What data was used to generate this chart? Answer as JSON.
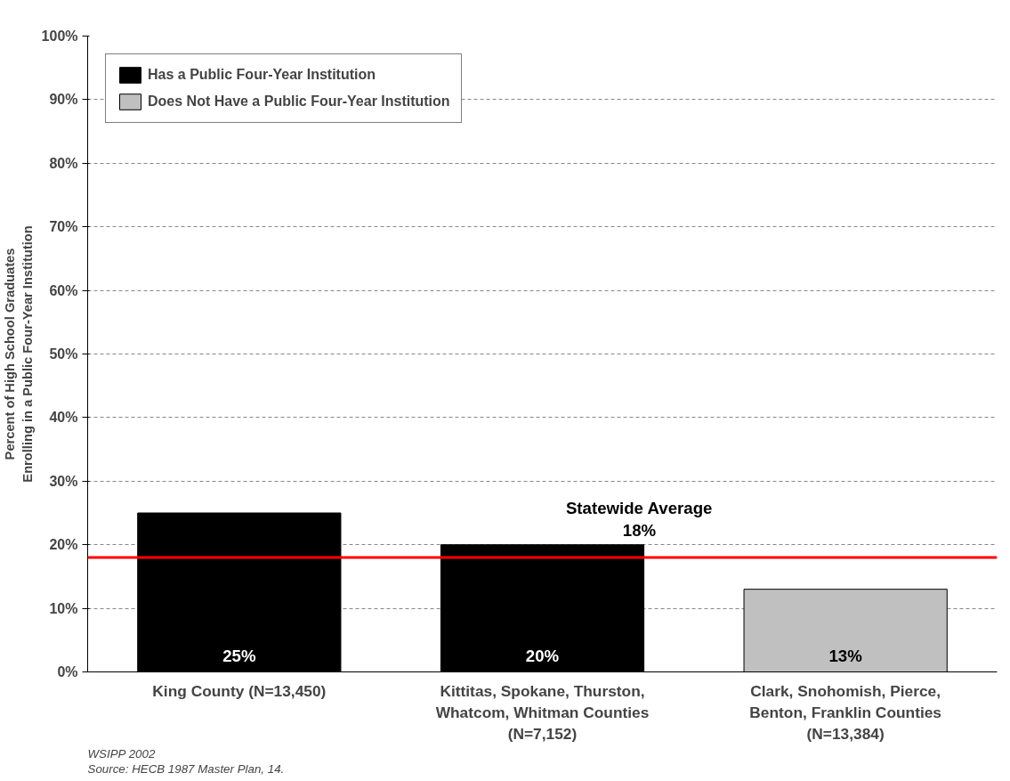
{
  "chart_data": {
    "type": "bar",
    "ylabel": "Percent of High School Graduates\nEnrolling in a Public Four-Year Institution",
    "categories": [
      "King County (N=13,450)",
      "Kittitas, Spokane, Thurston,\nWhatcom, Whitman Counties\n(N=7,152)",
      "Clark, Snohomish, Pierce,\nBenton, Franklin Counties\n(N=13,384)"
    ],
    "series": [
      {
        "name": "Has a Public Four-Year Institution",
        "color": "#000000",
        "values": [
          25,
          20,
          null
        ],
        "value_labels": [
          "25%",
          "20%",
          null
        ]
      },
      {
        "name": "Does Not Have a Public Four-Year Institution",
        "color": "#c0c0c0",
        "values": [
          null,
          null,
          13
        ],
        "value_labels": [
          null,
          null,
          "13%"
        ]
      }
    ],
    "ylim": [
      0,
      100
    ],
    "yticks": [
      {
        "value": 0,
        "label": "0%"
      },
      {
        "value": 10,
        "label": "10%"
      },
      {
        "value": 20,
        "label": "20%"
      },
      {
        "value": 30,
        "label": "30%"
      },
      {
        "value": 40,
        "label": "40%"
      },
      {
        "value": 50,
        "label": "50%"
      },
      {
        "value": 60,
        "label": "60%"
      },
      {
        "value": 70,
        "label": "70%"
      },
      {
        "value": 80,
        "label": "80%"
      },
      {
        "value": 90,
        "label": "90%"
      },
      {
        "value": 100,
        "label": "100%"
      }
    ],
    "grid": "y",
    "legend": "top left",
    "ref_lines": [
      {
        "axis": "y",
        "value": 18,
        "label": "Statewide Average\n18%",
        "color": "#ff0000"
      }
    ],
    "annotations": [
      "WSIPP 2002",
      "Source:  HECB 1987 Master Plan, 14."
    ]
  }
}
